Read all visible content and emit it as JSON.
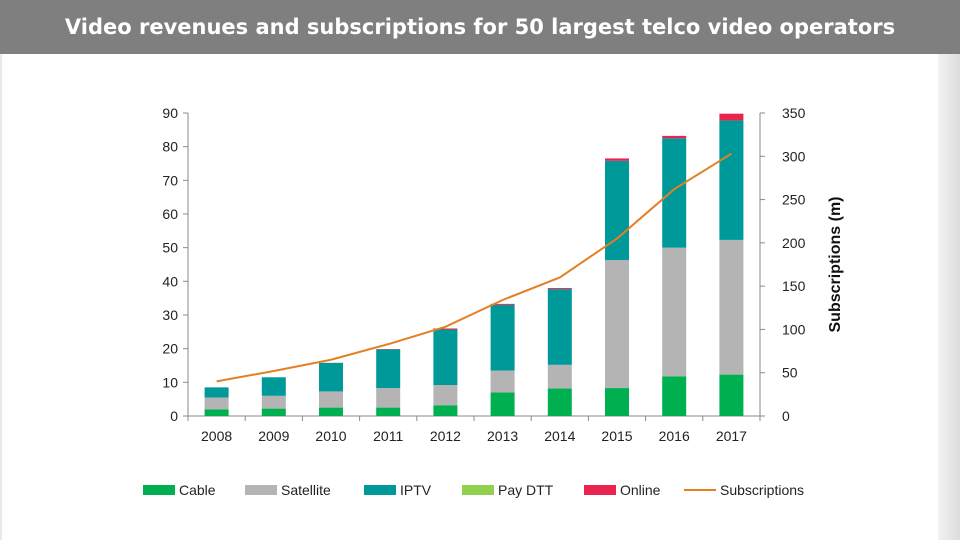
{
  "header": {
    "title": "Video revenues and subscriptions for 50 largest telco video operators"
  },
  "chart_data": {
    "type": "bar",
    "stacked": true,
    "title": "Video revenues and subscriptions for 50 largest telco video operators",
    "categories": [
      "2008",
      "2009",
      "2010",
      "2011",
      "2012",
      "2013",
      "2014",
      "2015",
      "2016",
      "2017"
    ],
    "series": [
      {
        "name": "Cable",
        "color": "#00b050",
        "values": [
          2,
          2.2,
          2.5,
          2.5,
          3.2,
          7,
          8.2,
          8.3,
          11.8,
          12.3
        ]
      },
      {
        "name": "Satellite",
        "color": "#b4b4b4",
        "values": [
          3.5,
          3.8,
          4.8,
          5.8,
          6,
          6.5,
          7,
          38,
          38.2,
          40
        ]
      },
      {
        "name": "IPTV",
        "color": "#009999",
        "values": [
          3,
          5.5,
          8.5,
          11.5,
          16.5,
          19.5,
          22.5,
          29.5,
          32.5,
          35.5
        ]
      },
      {
        "name": "Pay DTT",
        "color": "#92d050",
        "values": [
          0,
          0,
          0,
          0,
          0,
          0,
          0,
          0,
          0,
          0
        ]
      },
      {
        "name": "Online",
        "color": "#e8244f",
        "values": [
          0,
          0,
          0,
          0.1,
          0.3,
          0.3,
          0.3,
          0.7,
          0.7,
          2
        ]
      }
    ],
    "line_series": {
      "name": "Subscriptions",
      "color": "#e67e22",
      "axis": "right",
      "values": [
        40,
        52,
        65,
        83,
        103,
        134,
        160,
        205,
        262,
        303
      ]
    },
    "ylim": [
      0,
      90
    ],
    "yticks": [
      0,
      10,
      20,
      30,
      40,
      50,
      60,
      70,
      80,
      90
    ],
    "y2lim": [
      0,
      350
    ],
    "y2ticks": [
      0,
      50,
      100,
      150,
      200,
      250,
      300,
      350
    ],
    "y2label": "Subscriptions (m)",
    "legend_position": "bottom"
  }
}
